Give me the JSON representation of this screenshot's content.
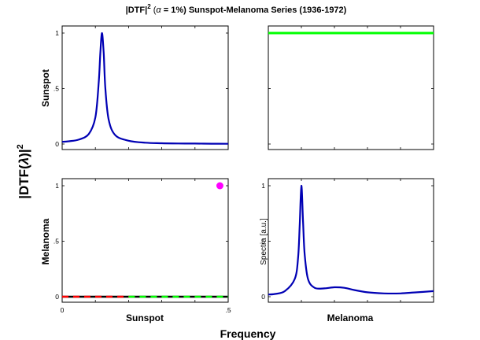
{
  "chart_data": {
    "type": "line",
    "title": "|DTF|² (α = 1%) Sunspot-Melanoma Series (1936-1972)",
    "title_parts": {
      "left": "|DTF|",
      "sup": "2",
      "open": "(",
      "alpha": "α",
      "rest": "= 1%) Sunspot-Melanoma Series (1936-1972)"
    },
    "xlabel": "Frequency",
    "ylabel_parts": {
      "pre": "|DTF(",
      "lambda": "λ",
      "post": ")|",
      "sup": "2"
    },
    "xlim": [
      0,
      0.5
    ],
    "ylim": [
      0,
      1
    ],
    "column_labels": [
      "Sunspot",
      "Melanoma"
    ],
    "row_labels": [
      "Sunspot",
      "Melanoma"
    ],
    "spectra_label": "Spectra [a.u.]",
    "yticks": [
      "0",
      ".5",
      "1"
    ],
    "xticks": [
      "0",
      ".5"
    ],
    "colors": {
      "spectrum": "#0000b4",
      "dtf_flat": "#00ff00",
      "threshold_red": "#ff0000",
      "threshold_black": "#000000",
      "significance_marker": "#ff00ff"
    },
    "panels": [
      {
        "row": "Sunspot",
        "col": "Sunspot",
        "kind": "spectrum",
        "x": [
          0,
          0.02,
          0.05,
          0.08,
          0.1,
          0.11,
          0.115,
          0.12,
          0.125,
          0.13,
          0.14,
          0.16,
          0.2,
          0.25,
          0.3,
          0.35,
          0.4,
          0.45,
          0.5
        ],
        "y": [
          0.02,
          0.025,
          0.04,
          0.09,
          0.24,
          0.55,
          0.82,
          1.0,
          0.82,
          0.5,
          0.22,
          0.08,
          0.03,
          0.012,
          0.007,
          0.005,
          0.004,
          0.003,
          0.002
        ]
      },
      {
        "row": "Sunspot",
        "col": "Melanoma",
        "kind": "dtf",
        "x": [
          0,
          0.5
        ],
        "y": [
          1.0,
          1.0
        ]
      },
      {
        "row": "Melanoma",
        "col": "Sunspot",
        "kind": "dtf",
        "x": [
          0,
          0.5
        ],
        "y": [
          0.0,
          0.0
        ],
        "significant_point": {
          "x": 0.475,
          "y": 1.0
        }
      },
      {
        "row": "Melanoma",
        "col": "Melanoma",
        "kind": "spectrum",
        "x": [
          0,
          0.02,
          0.05,
          0.08,
          0.09,
          0.095,
          0.1,
          0.105,
          0.11,
          0.12,
          0.14,
          0.17,
          0.2,
          0.23,
          0.26,
          0.3,
          0.35,
          0.4,
          0.45,
          0.5
        ],
        "y": [
          0.02,
          0.025,
          0.05,
          0.16,
          0.35,
          0.65,
          1.0,
          0.68,
          0.38,
          0.16,
          0.08,
          0.075,
          0.085,
          0.08,
          0.06,
          0.04,
          0.03,
          0.03,
          0.04,
          0.05
        ]
      }
    ]
  }
}
